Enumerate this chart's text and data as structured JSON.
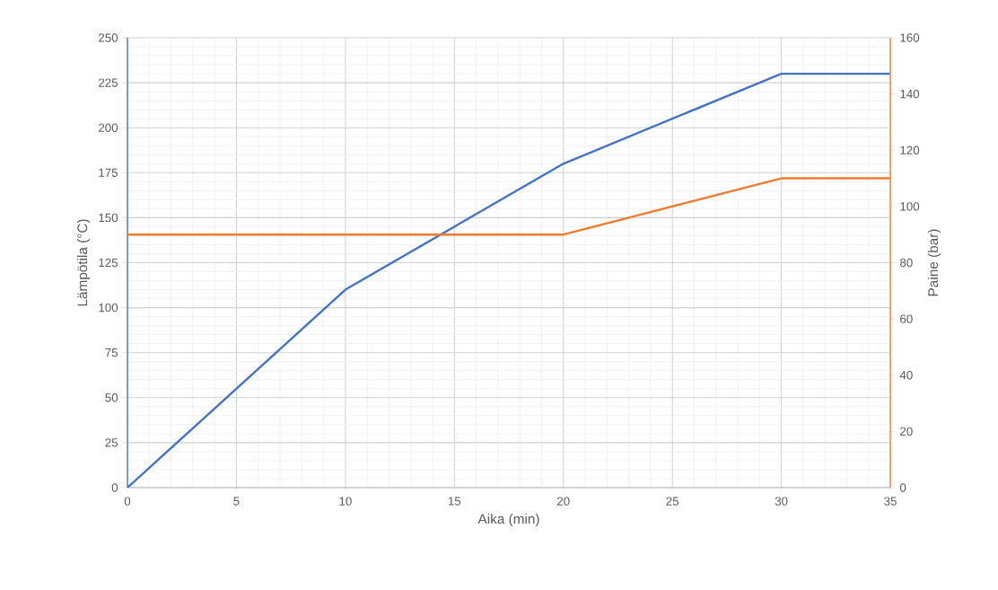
{
  "chart_data": {
    "type": "line",
    "xlabel": "Aika (min)",
    "ylabel": "Lämpötila (°C)",
    "y2label": "Paine (bar)",
    "series": [
      {
        "color": "#4472c4",
        "x": [
          0,
          10,
          20,
          30,
          35
        ],
        "values": [
          0,
          110,
          180,
          230,
          230
        ]
      },
      {
        "color": "#ed7d31",
        "axis": "y2",
        "x": [
          0,
          20,
          30,
          35
        ],
        "values": [
          90,
          90,
          110,
          110
        ]
      }
    ],
    "xlim": [
      0,
      35
    ],
    "xticks": [
      0,
      5,
      10,
      15,
      20,
      25,
      30,
      35
    ],
    "ylim": [
      0,
      250
    ],
    "yticks": [
      0,
      25,
      50,
      75,
      100,
      125,
      150,
      175,
      200,
      225,
      250
    ],
    "y2lim": [
      0,
      160
    ],
    "y2ticks": [
      0,
      20,
      40,
      60,
      80,
      100,
      120,
      140,
      160
    ],
    "grid": true
  }
}
